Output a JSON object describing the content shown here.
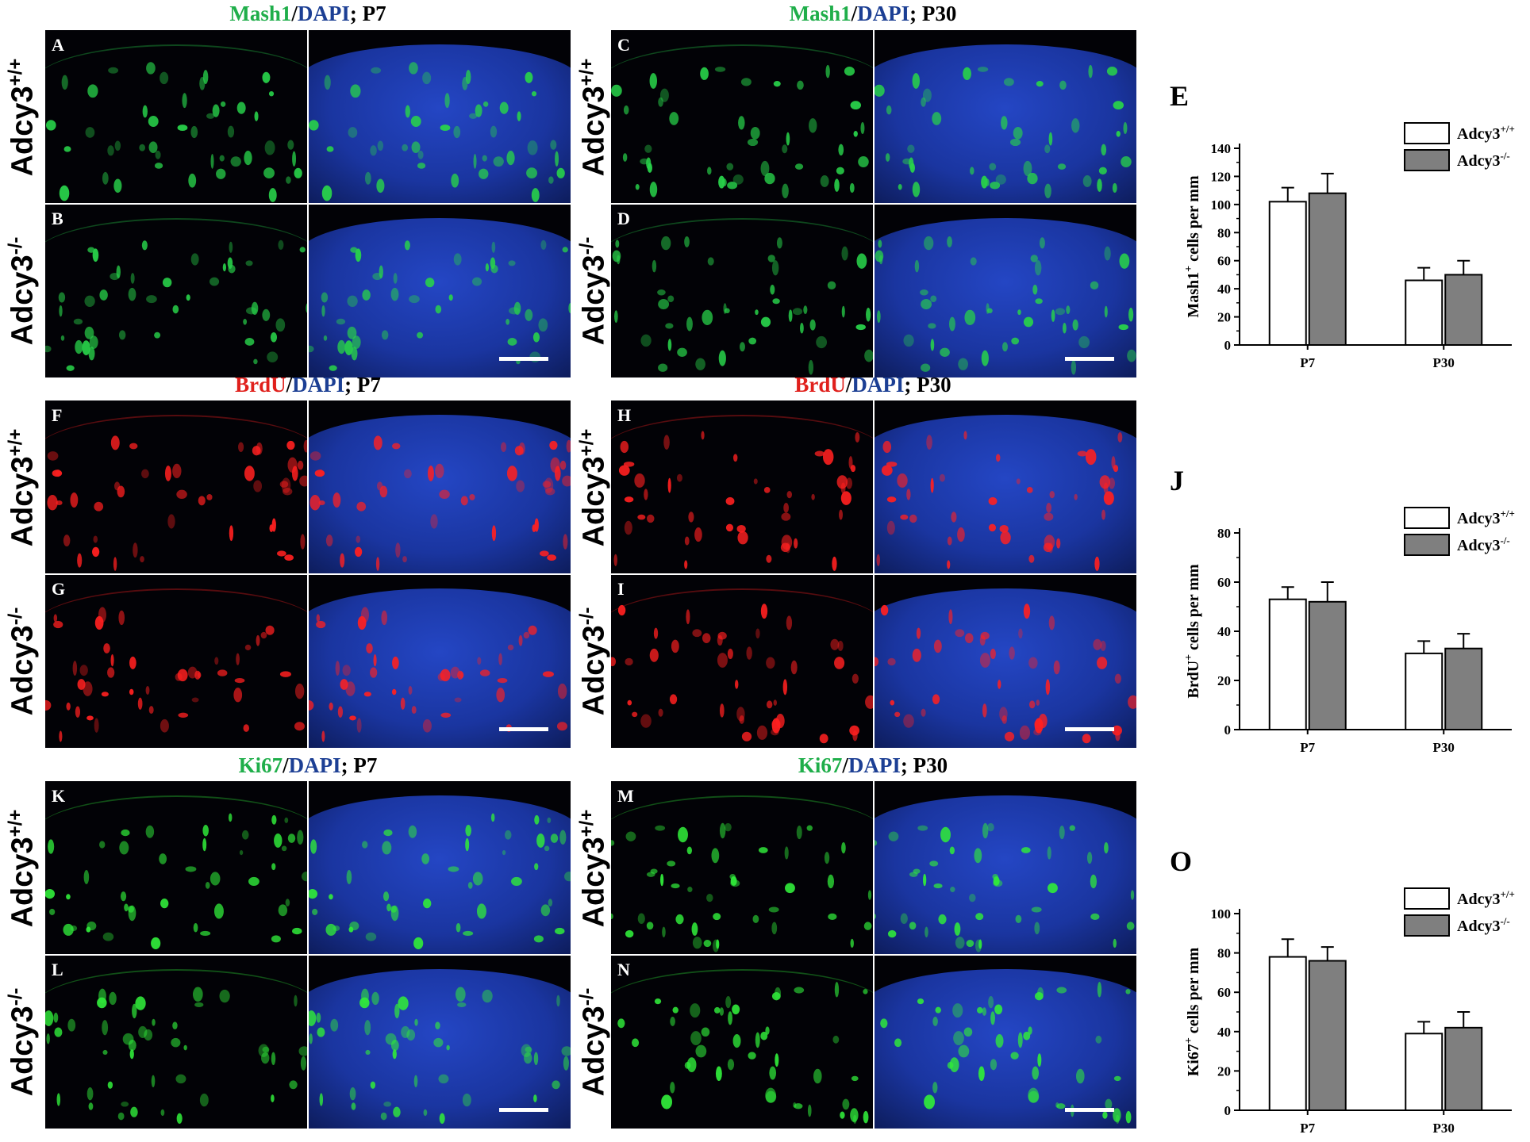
{
  "rows": [
    {
      "left_title": {
        "marker": "Mash1",
        "marker_color": "green",
        "sep": "/",
        "dapi": "DAPI",
        "age": "; P7"
      },
      "right_title": {
        "marker": "Mash1",
        "marker_color": "green",
        "sep": "/",
        "dapi": "DAPI",
        "age": "; P30"
      },
      "panels": {
        "top_left": "A",
        "bottom_left": "B",
        "top_right": "C",
        "bottom_right": "D"
      },
      "signal": "#28d24a"
    },
    {
      "left_title": {
        "marker": "BrdU",
        "marker_color": "red",
        "sep": "/",
        "dapi": "DAPI",
        "age": "; P7"
      },
      "right_title": {
        "marker": "BrdU",
        "marker_color": "red",
        "sep": "/",
        "dapi": "DAPI",
        "age": "; P30"
      },
      "panels": {
        "top_left": "F",
        "bottom_left": "G",
        "top_right": "H",
        "bottom_right": "I"
      },
      "signal": "#ff2020"
    },
    {
      "left_title": {
        "marker": "Ki67",
        "marker_color": "green",
        "sep": "/",
        "dapi": "DAPI",
        "age": "; P7"
      },
      "right_title": {
        "marker": "Ki67",
        "marker_color": "green",
        "sep": "/",
        "dapi": "DAPI",
        "age": "; P30"
      },
      "panels": {
        "top_left": "K",
        "bottom_left": "L",
        "top_right": "M",
        "bottom_right": "N"
      },
      "signal": "#30ea3a"
    }
  ],
  "genotypes": {
    "wt_base": "Adcy3",
    "wt_sup": "+/+",
    "ko_base": "Adcy3",
    "ko_sup": "-/-"
  },
  "colors": {
    "dapi": "#1c3fb0",
    "green": "#1fae4a",
    "red": "#e0201c",
    "blue": "#1c3f94",
    "bar_wt": "#ffffff",
    "bar_ko": "#7f7f7f"
  },
  "chart_data": [
    {
      "type": "bar",
      "panel_letter": "E",
      "ylabel_base": "Mash1",
      "ylabel_sup": "+",
      "ylabel_rest": " cells per mm",
      "categories": [
        "P7",
        "P30"
      ],
      "ylim": [
        0,
        140
      ],
      "yticks": [
        0,
        20,
        40,
        60,
        80,
        100,
        120,
        140
      ],
      "series": [
        {
          "name_base": "Adcy3",
          "name_sup": "+/+",
          "values": [
            102,
            46
          ],
          "errors": [
            10,
            9
          ]
        },
        {
          "name_base": "Adcy3",
          "name_sup": "-/-",
          "values": [
            108,
            50
          ],
          "errors": [
            14,
            10
          ]
        }
      ],
      "legend": "top-right"
    },
    {
      "type": "bar",
      "panel_letter": "J",
      "ylabel_base": "BrdU",
      "ylabel_sup": "+",
      "ylabel_rest": " cells per mm",
      "categories": [
        "P7",
        "P30"
      ],
      "ylim": [
        0,
        80
      ],
      "yticks": [
        0,
        20,
        40,
        60,
        80
      ],
      "series": [
        {
          "name_base": "Adcy3",
          "name_sup": "+/+",
          "values": [
            53,
            31
          ],
          "errors": [
            5,
            5
          ]
        },
        {
          "name_base": "Adcy3",
          "name_sup": "-/-",
          "values": [
            52,
            33
          ],
          "errors": [
            8,
            6
          ]
        }
      ],
      "legend": "top-right"
    },
    {
      "type": "bar",
      "panel_letter": "O",
      "ylabel_base": "Ki67",
      "ylabel_sup": "+",
      "ylabel_rest": " cells per mm",
      "categories": [
        "P7",
        "P30"
      ],
      "ylim": [
        0,
        100
      ],
      "yticks": [
        0,
        20,
        40,
        60,
        80,
        100
      ],
      "series": [
        {
          "name_base": "Adcy3",
          "name_sup": "+/+",
          "values": [
            78,
            39
          ],
          "errors": [
            9,
            6
          ]
        },
        {
          "name_base": "Adcy3",
          "name_sup": "-/-",
          "values": [
            76,
            42
          ],
          "errors": [
            7,
            8
          ]
        }
      ],
      "legend": "top-right"
    }
  ]
}
